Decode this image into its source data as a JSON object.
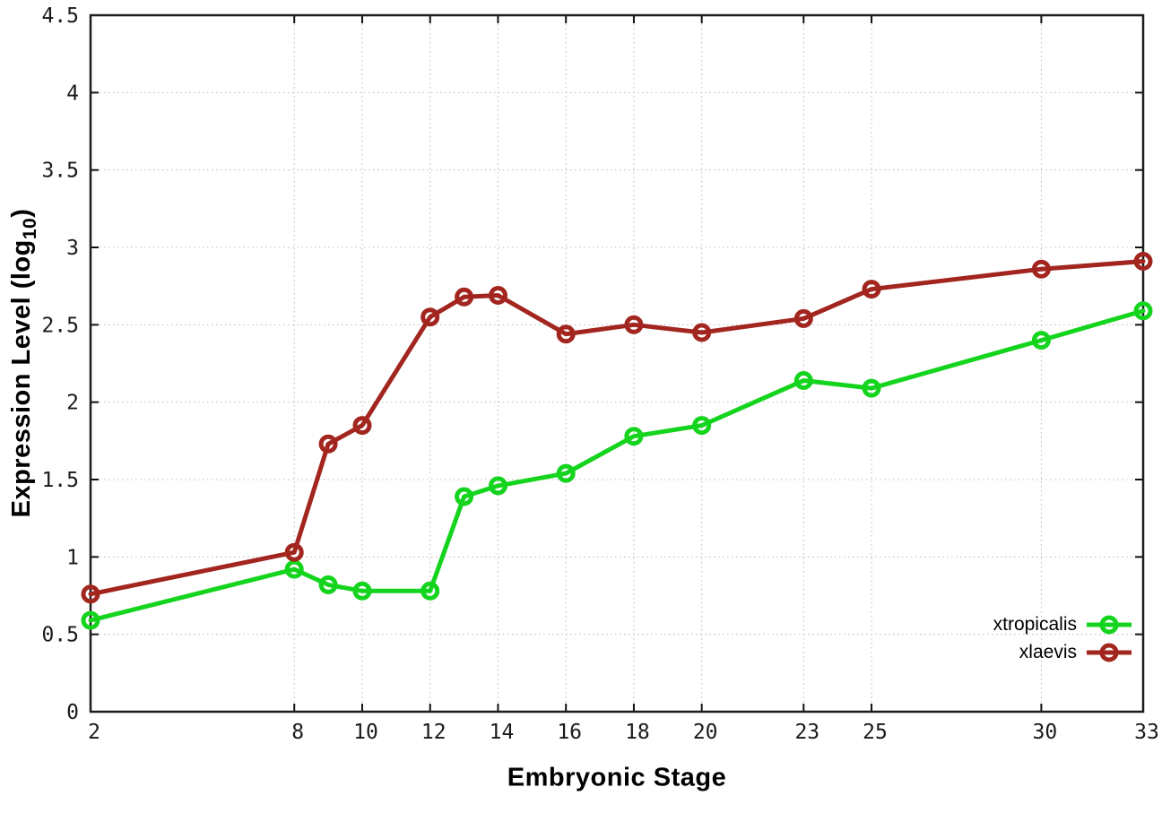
{
  "figure": {
    "xlabel": "Embryonic Stage",
    "ylabel_prefix": "Expression Level (log",
    "ylabel_sub": "10",
    "ylabel_suffix": ")",
    "background_color": "#ffffff",
    "grid_color": "#b9b9b9",
    "border_color": "#1c1c1c"
  },
  "legend": {
    "position": "inside-bottom-right",
    "entries": [
      {
        "label": "xtropicalis",
        "color": "#14d41e"
      },
      {
        "label": "xlaevis",
        "color": "#a2261f"
      }
    ]
  },
  "chart_data": {
    "type": "line",
    "title": "",
    "xlabel": "Embryonic Stage",
    "ylabel": "Expression Level (log10)",
    "xlim": [
      2,
      33
    ],
    "ylim": [
      0,
      4.5
    ],
    "xticks": [
      2,
      8,
      10,
      12,
      14,
      16,
      18,
      20,
      23,
      25,
      30,
      33
    ],
    "yticks": [
      0,
      0.5,
      1,
      1.5,
      2,
      2.5,
      3,
      3.5,
      4,
      4.5
    ],
    "grid": true,
    "grid_style": "dotted",
    "marker": "open-circle",
    "legend_position": "inside-bottom-right",
    "x": [
      2,
      8,
      9,
      10,
      12,
      13,
      14,
      16,
      18,
      20,
      23,
      25,
      30,
      33
    ],
    "series": [
      {
        "name": "xtropicalis",
        "color": "#14d41e",
        "values": [
          0.59,
          0.92,
          0.82,
          0.78,
          0.78,
          1.39,
          1.46,
          1.54,
          1.78,
          1.85,
          2.14,
          2.09,
          2.4,
          2.59
        ]
      },
      {
        "name": "xlaevis",
        "color": "#a2261f",
        "values": [
          0.76,
          1.03,
          1.73,
          1.85,
          2.55,
          2.68,
          2.69,
          2.44,
          2.5,
          2.45,
          2.54,
          2.73,
          2.86,
          2.91
        ]
      }
    ]
  }
}
